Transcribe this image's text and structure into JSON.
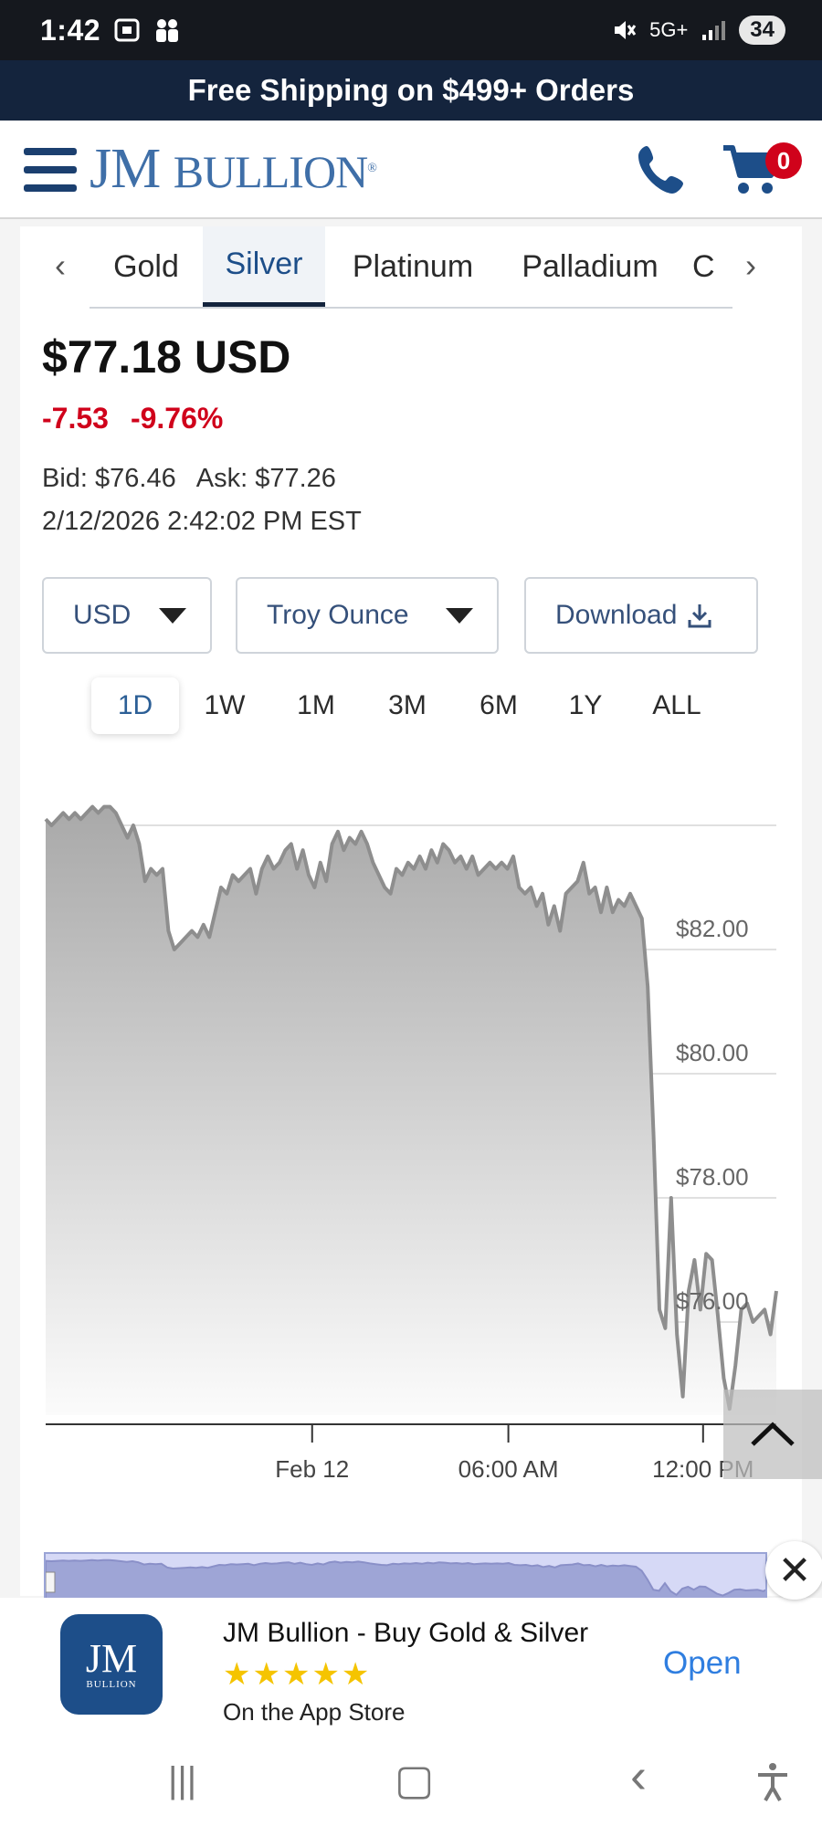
{
  "status_bar": {
    "time": "1:42",
    "network": "5G+",
    "battery": "34"
  },
  "promo": {
    "text": "Free Shipping on $499+ Orders"
  },
  "header": {
    "logo_text_jm": "JM",
    "logo_text_bullion": "BULLION",
    "logo_mark": "®",
    "cart_count": "0"
  },
  "tabs": {
    "items": [
      "Gold",
      "Silver",
      "Platinum",
      "Palladium",
      "C"
    ],
    "active": "Silver"
  },
  "quote": {
    "price": "$77.18 USD",
    "change": "-7.53",
    "change_pct": "-9.76%",
    "bid": "Bid: $76.46",
    "ask": "Ask: $77.26",
    "timestamp": "2/12/2026 2:42:02 PM EST"
  },
  "controls": {
    "currency": "USD",
    "unit": "Troy Ounce",
    "download": "Download"
  },
  "ranges": {
    "items": [
      "1D",
      "1W",
      "1M",
      "3M",
      "6M",
      "1Y",
      "ALL"
    ],
    "active": "1D"
  },
  "chart_data": {
    "type": "area",
    "ylim": [
      74.5,
      84.5
    ],
    "y_ticks": [
      "$82.00",
      "$80.00",
      "$78.00",
      "$76.00"
    ],
    "y_tick_values": [
      82,
      80,
      78,
      76
    ],
    "x_ticks": [
      "Feb 12",
      "06:00 AM",
      "12:00 PM"
    ],
    "x_tick_positions": [
      0.368,
      0.63,
      0.89
    ],
    "series": [
      {
        "values": [
          84.1,
          84.0,
          84.1,
          84.2,
          84.1,
          84.2,
          84.1,
          84.2,
          84.3,
          84.2,
          84.3,
          84.3,
          84.2,
          84.0,
          83.8,
          84.0,
          83.7,
          83.1,
          83.3,
          83.2,
          83.3,
          82.3,
          82.0,
          82.1,
          82.2,
          82.3,
          82.2,
          82.4,
          82.2,
          82.6,
          83.0,
          82.9,
          83.2,
          83.1,
          83.2,
          83.3,
          82.9,
          83.3,
          83.5,
          83.3,
          83.4,
          83.6,
          83.7,
          83.3,
          83.6,
          83.2,
          83.0,
          83.4,
          83.1,
          83.7,
          83.9,
          83.6,
          83.8,
          83.7,
          83.9,
          83.7,
          83.4,
          83.2,
          83.0,
          82.9,
          83.3,
          83.2,
          83.4,
          83.3,
          83.5,
          83.3,
          83.6,
          83.4,
          83.7,
          83.6,
          83.4,
          83.5,
          83.3,
          83.5,
          83.2,
          83.3,
          83.4,
          83.3,
          83.4,
          83.3,
          83.5,
          83.0,
          82.9,
          83.0,
          82.7,
          82.9,
          82.4,
          82.7,
          82.3,
          82.9,
          83.0,
          83.1,
          83.4,
          82.9,
          83.0,
          82.6,
          83.0,
          82.6,
          82.8,
          82.7,
          82.9,
          82.7,
          82.5,
          81.4,
          79.0,
          76.2,
          75.9,
          78.0,
          75.8,
          74.8,
          76.5,
          77.0,
          76.2,
          77.1,
          77.0,
          76.1,
          75.1,
          74.6,
          75.3,
          76.2,
          76.3,
          76.0,
          76.1,
          76.2,
          75.8,
          76.5
        ]
      }
    ]
  },
  "scroll_top": {
    "icon": "chevron-up-icon"
  },
  "app_banner": {
    "icon_text": "JM",
    "icon_subtext": "BULLION",
    "title": "JM Bullion - Buy Gold & Silver",
    "stars": "★★★★★",
    "subtitle": "On the App Store",
    "open": "Open",
    "close": "✕"
  },
  "navbar": {
    "recent": "|||",
    "home": "▢",
    "back": "‹",
    "accessibility": "accessibility-icon"
  }
}
